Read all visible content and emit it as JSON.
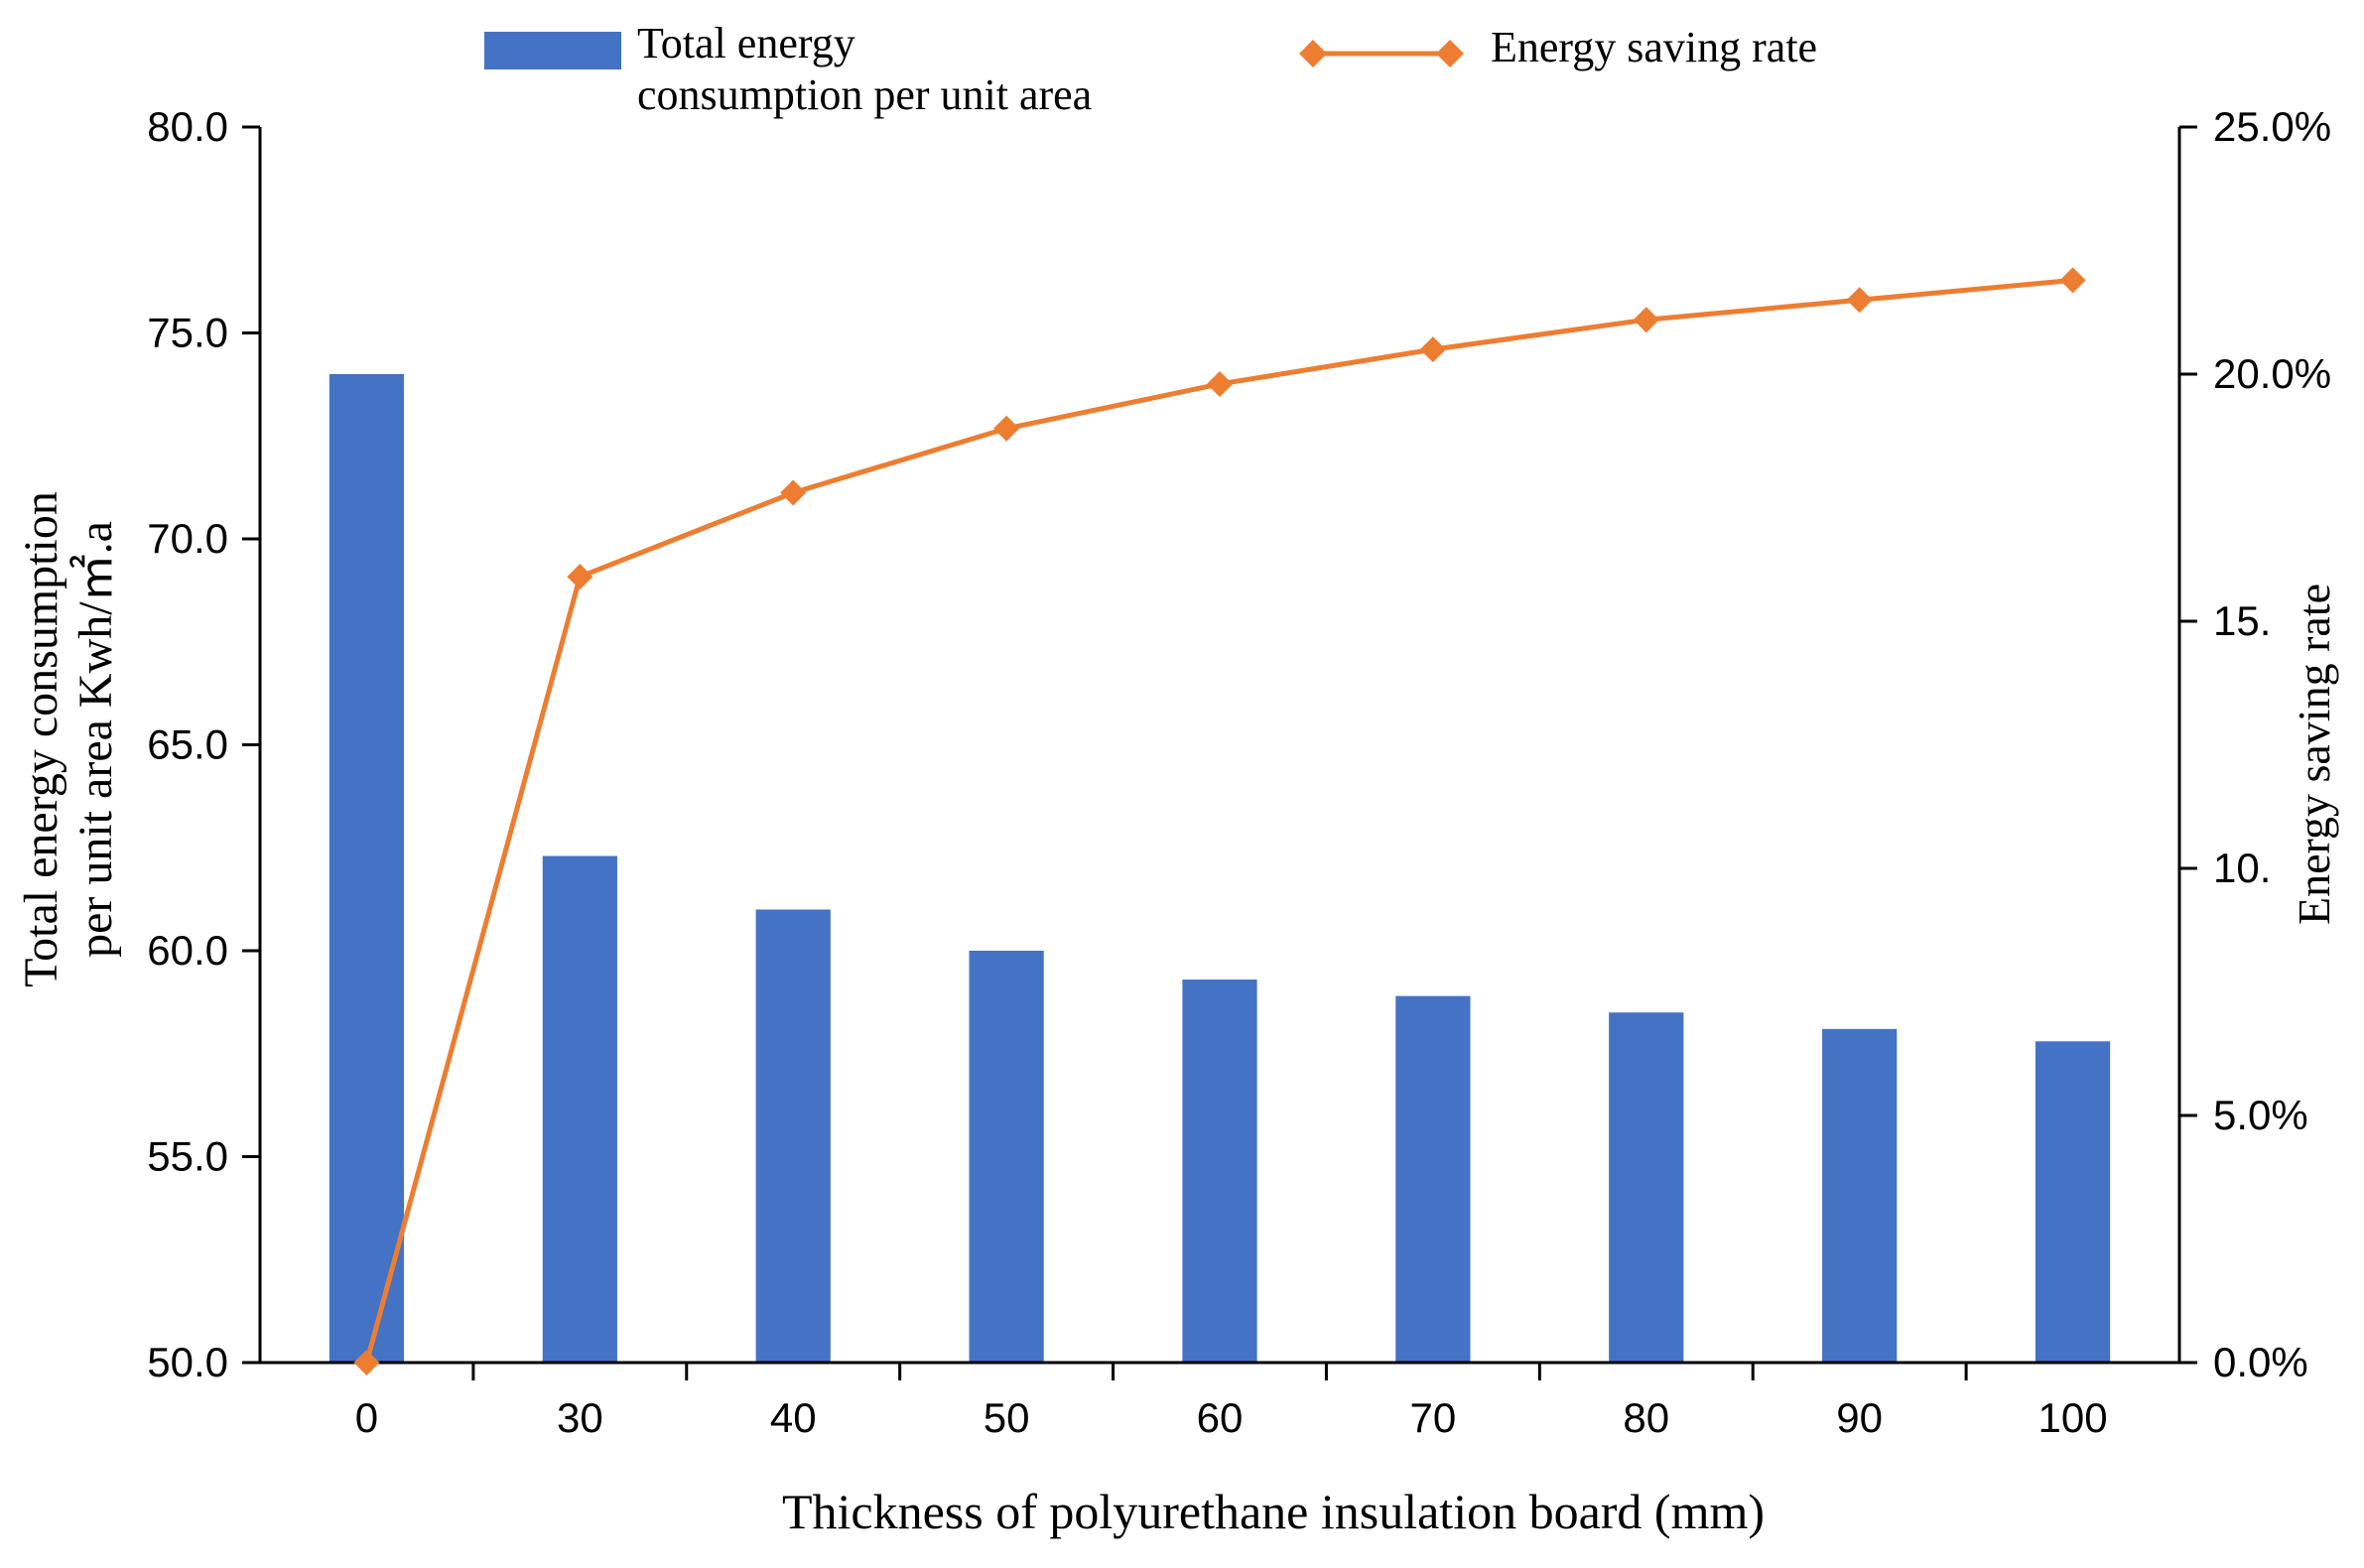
{
  "chart_data": {
    "type": "bar+line",
    "categories": [
      "0",
      "30",
      "40",
      "50",
      "60",
      "70",
      "80",
      "90",
      "100"
    ],
    "series": [
      {
        "name": "Total energy consumption per unit area",
        "type": "bar",
        "axis": "left",
        "values": [
          74.0,
          62.3,
          61.0,
          60.0,
          59.3,
          58.9,
          58.5,
          58.1,
          57.8
        ]
      },
      {
        "name": "Energy saving rate",
        "type": "line",
        "axis": "right",
        "values": [
          0.0,
          15.9,
          17.6,
          18.9,
          19.8,
          20.5,
          21.1,
          21.5,
          21.9
        ]
      }
    ],
    "legend": {
      "bar_line1": "Total energy",
      "bar_line2": "consumption per unit area",
      "line": "Energy saving rate",
      "position": "top"
    },
    "xlabel": "Thickness of polyurethane insulation board (mm)",
    "ylabel_left_line1": "Total energy consumption",
    "ylabel_left_line2": "per unit area Kwh/㎡.a",
    "ylabel_right": "Energy saving rate",
    "ylim_left": [
      50,
      80
    ],
    "ylim_right": [
      0,
      25
    ],
    "left_ticks": [
      "50.0",
      "55.0",
      "60.0",
      "65.0",
      "70.0",
      "75.0",
      "80.0"
    ],
    "right_ticks": [
      "0.0%",
      "5.0%",
      "10.",
      "15.",
      "20.0%",
      "25.0%"
    ],
    "colors": {
      "bar": "#4472C4",
      "line": "#ED7D31",
      "axis": "#000000"
    }
  }
}
